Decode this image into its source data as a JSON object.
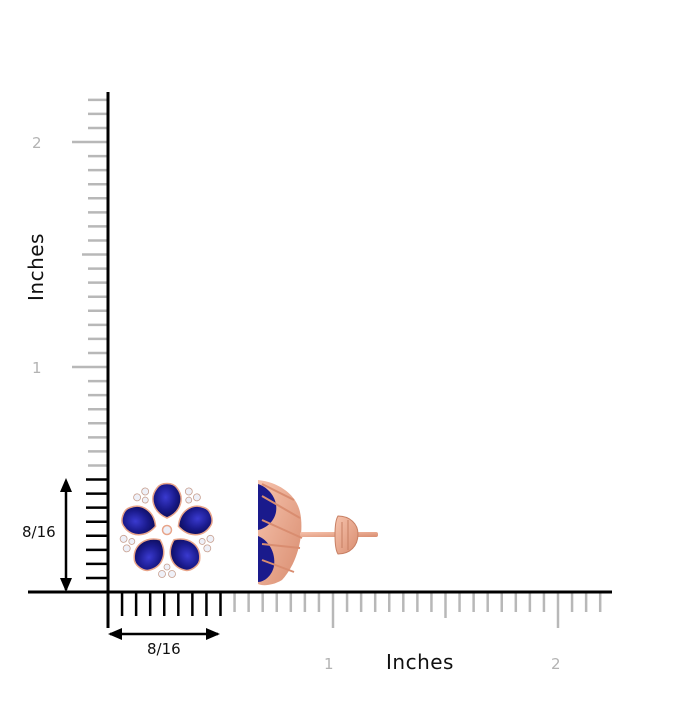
{
  "ruler": {
    "x_axis_title": "Inches",
    "y_axis_title": "Inches",
    "x_tick_labels": [
      "1",
      "2"
    ],
    "y_tick_labels": [
      "2",
      "1"
    ],
    "minor_ticks_per_inch": 16,
    "colors": {
      "main_axis": "#000000",
      "grey_ticks": "#b8b8b8",
      "label_grey": "#b3b3b3"
    }
  },
  "dimensions": {
    "width_label": "8/16",
    "height_label": "8/16"
  },
  "product": {
    "name": "tanzanite-flower-stud-earrings",
    "colors": {
      "gem": "#1a1a8c",
      "metal": "#e8a58a",
      "diamond": "#eef0f8"
    }
  }
}
